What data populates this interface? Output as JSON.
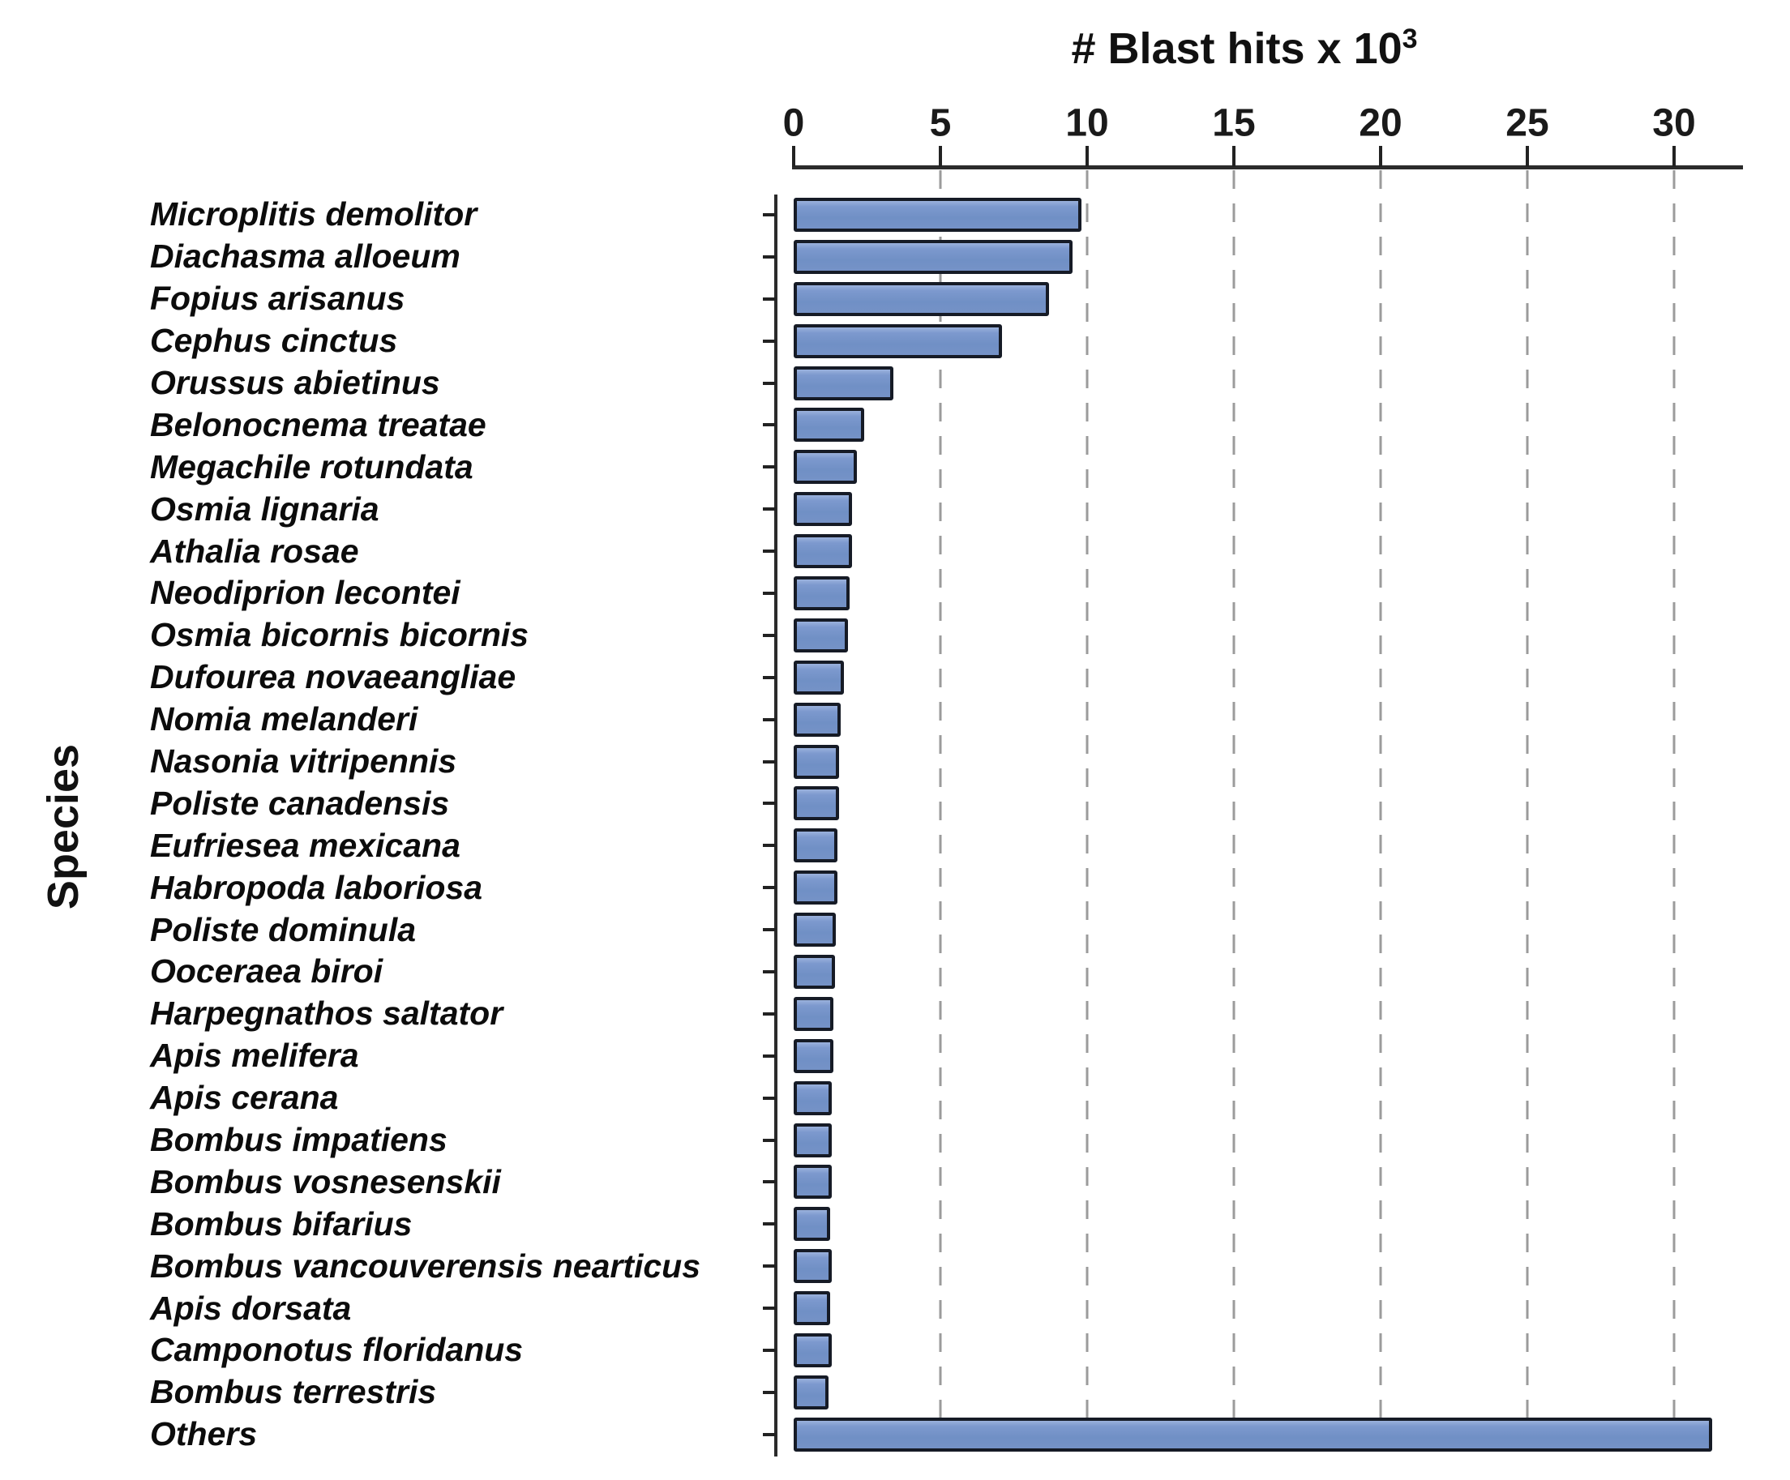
{
  "chart_data": {
    "type": "bar",
    "orientation": "horizontal",
    "title": "# Blast hits x 10³",
    "title_base": "# Blast hits x 10",
    "title_exponent": "3",
    "ylabel": "Species",
    "xlabel": "# Blast hits x 10³",
    "xlim": [
      0,
      32
    ],
    "x_ticks": [
      0,
      5,
      10,
      15,
      20,
      25,
      30
    ],
    "gridline_values": [
      5,
      10,
      15,
      20,
      25,
      30
    ],
    "grid_style": "dashed",
    "legend": "none",
    "categories": [
      "Microplitis demolitor",
      "Diachasma alloeum",
      "Fopius arisanus",
      "Cephus cinctus",
      "Orussus abietinus",
      "Belonocnema treatae",
      "Megachile rotundata",
      "Osmia lignaria",
      "Athalia rosae",
      "Neodiprion lecontei",
      "Osmia bicornis bicornis",
      "Dufourea novaeangliae",
      "Nomia melanderi",
      "Nasonia vitripennis",
      "Poliste canadensis",
      "Eufriesea mexicana",
      "Habropoda laboriosa",
      "Poliste dominula",
      "Ooceraea biroi",
      "Harpegnathos saltator",
      "Apis melifera",
      "Apis cerana",
      "Bombus impatiens",
      "Bombus vosnesenskii",
      "Bombus bifarius",
      "Bombus vancouverensis nearticus",
      "Apis dorsata",
      "Camponotus floridanus",
      "Bombus terrestris",
      "Others"
    ],
    "values": [
      9.8,
      9.5,
      8.7,
      7.1,
      3.4,
      2.4,
      2.15,
      2.0,
      2.0,
      1.9,
      1.85,
      1.7,
      1.6,
      1.55,
      1.55,
      1.5,
      1.5,
      1.45,
      1.4,
      1.35,
      1.35,
      1.3,
      1.3,
      1.3,
      1.25,
      1.3,
      1.25,
      1.3,
      1.2,
      31.3
    ],
    "colors": {
      "bar_fill": "#7592C7",
      "bar_fill_highlight": "#9AB1DC",
      "bar_border": "#161B26",
      "grid_color": "#9B9B9B",
      "axis_color": "#2B2B2B",
      "text_color": "#111111",
      "background": "#FFFFFF"
    }
  }
}
